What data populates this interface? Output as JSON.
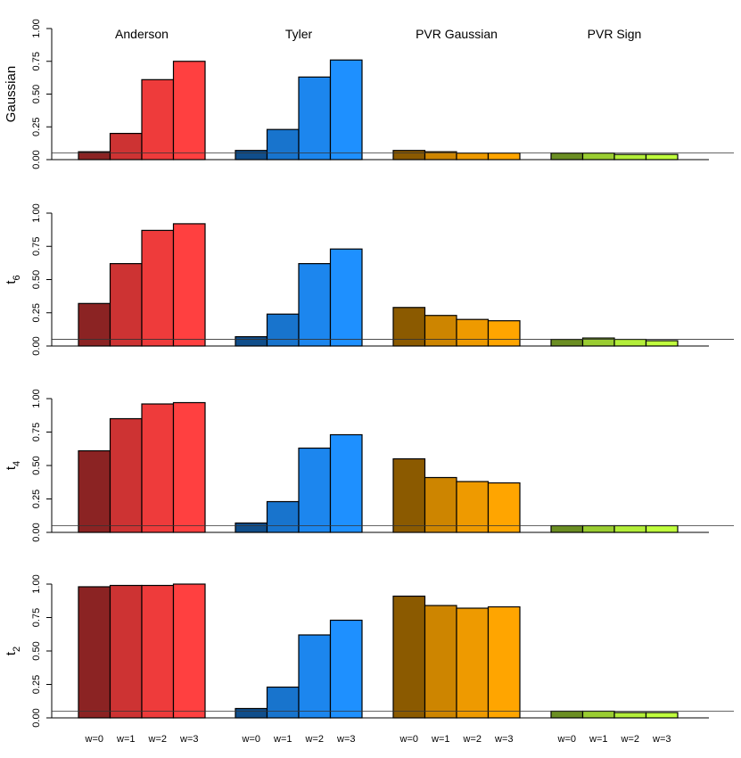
{
  "chart_data": [
    {
      "type": "bar",
      "ylabel": {
        "text": "Gaussian"
      },
      "ylim": [
        0,
        1
      ],
      "yticks": [
        {
          "value": 0,
          "label": "0.00"
        },
        0.25,
        {
          "value": 0.5,
          "label": "0.50"
        },
        0.75,
        {
          "value": 1,
          "label": "1.00"
        }
      ],
      "hline": 0.05,
      "series": [
        {
          "name": "Anderson",
          "colors": [
            "#8b2323",
            "#cd3333",
            "#ee3b3b",
            "#ff4040"
          ],
          "values": [
            0.06,
            0.2,
            0.61,
            0.75
          ]
        },
        {
          "name": "Tyler",
          "colors": [
            "#104e8b",
            "#1874cd",
            "#1c86ee",
            "#1e90ff"
          ],
          "values": [
            0.07,
            0.23,
            0.63,
            0.76
          ]
        },
        {
          "name": "PVR Gaussian",
          "colors": [
            "#8b5a00",
            "#cd8500",
            "#ee9a00",
            "#ffa500"
          ],
          "values": [
            0.07,
            0.06,
            0.05,
            0.05
          ]
        },
        {
          "name": "PVR Sign",
          "colors": [
            "#6b8e23",
            "#9acd32",
            "#b3ee3a",
            "#c0ff3e"
          ],
          "values": [
            0.05,
            0.05,
            0.04,
            0.04
          ]
        }
      ]
    },
    {
      "type": "bar",
      "ylabel": {
        "text": "t",
        "subscript": "6"
      },
      "ylim": [
        0,
        1
      ],
      "yticks": [
        {
          "value": 0,
          "label": "0.00"
        },
        0.25,
        {
          "value": 0.5,
          "label": "0.50"
        },
        0.75,
        {
          "value": 1,
          "label": "1.00"
        }
      ],
      "hline": 0.05,
      "series": [
        {
          "colors": [
            "#8b2323",
            "#cd3333",
            "#ee3b3b",
            "#ff4040"
          ],
          "values": [
            0.32,
            0.62,
            0.87,
            0.92
          ]
        },
        {
          "colors": [
            "#104e8b",
            "#1874cd",
            "#1c86ee",
            "#1e90ff"
          ],
          "values": [
            0.07,
            0.24,
            0.62,
            0.73
          ]
        },
        {
          "colors": [
            "#8b5a00",
            "#cd8500",
            "#ee9a00",
            "#ffa500"
          ],
          "values": [
            0.29,
            0.23,
            0.2,
            0.19
          ]
        },
        {
          "colors": [
            "#6b8e23",
            "#9acd32",
            "#b3ee3a",
            "#c0ff3e"
          ],
          "values": [
            0.05,
            0.06,
            0.05,
            0.04
          ]
        }
      ]
    },
    {
      "type": "bar",
      "ylabel": {
        "text": "t",
        "subscript": "4"
      },
      "ylim": [
        0,
        1
      ],
      "yticks": [
        {
          "value": 0,
          "label": "0.00"
        },
        0.25,
        {
          "value": 0.5,
          "label": "0.50"
        },
        0.75,
        {
          "value": 1,
          "label": "1.00"
        }
      ],
      "hline": 0.05,
      "series": [
        {
          "colors": [
            "#8b2323",
            "#cd3333",
            "#ee3b3b",
            "#ff4040"
          ],
          "values": [
            0.61,
            0.85,
            0.96,
            0.97
          ]
        },
        {
          "colors": [
            "#104e8b",
            "#1874cd",
            "#1c86ee",
            "#1e90ff"
          ],
          "values": [
            0.07,
            0.23,
            0.63,
            0.73
          ]
        },
        {
          "colors": [
            "#8b5a00",
            "#cd8500",
            "#ee9a00",
            "#ffa500"
          ],
          "values": [
            0.55,
            0.41,
            0.38,
            0.37
          ]
        },
        {
          "colors": [
            "#6b8e23",
            "#9acd32",
            "#b3ee3a",
            "#c0ff3e"
          ],
          "values": [
            0.05,
            0.05,
            0.05,
            0.05
          ]
        }
      ]
    },
    {
      "type": "bar",
      "ylabel": {
        "text": "t",
        "subscript": "2"
      },
      "ylim": [
        0,
        1
      ],
      "yticks": [
        {
          "value": 0,
          "label": "0.00"
        },
        0.25,
        {
          "value": 0.5,
          "label": "0.50"
        },
        0.75,
        {
          "value": 1,
          "label": "1.00"
        }
      ],
      "hline": 0.05,
      "categories": [
        "w=0",
        "w=1",
        "w=2",
        "w=3"
      ],
      "series": [
        {
          "colors": [
            "#8b2323",
            "#cd3333",
            "#ee3b3b",
            "#ff4040"
          ],
          "values": [
            0.98,
            0.99,
            0.99,
            1.0
          ]
        },
        {
          "colors": [
            "#104e8b",
            "#1874cd",
            "#1c86ee",
            "#1e90ff"
          ],
          "values": [
            0.07,
            0.23,
            0.62,
            0.73
          ]
        },
        {
          "colors": [
            "#8b5a00",
            "#cd8500",
            "#ee9a00",
            "#ffa500"
          ],
          "values": [
            0.91,
            0.84,
            0.82,
            0.83
          ]
        },
        {
          "colors": [
            "#6b8e23",
            "#9acd32",
            "#b3ee3a",
            "#c0ff3e"
          ],
          "values": [
            0.05,
            0.05,
            0.04,
            0.04
          ]
        }
      ]
    }
  ]
}
